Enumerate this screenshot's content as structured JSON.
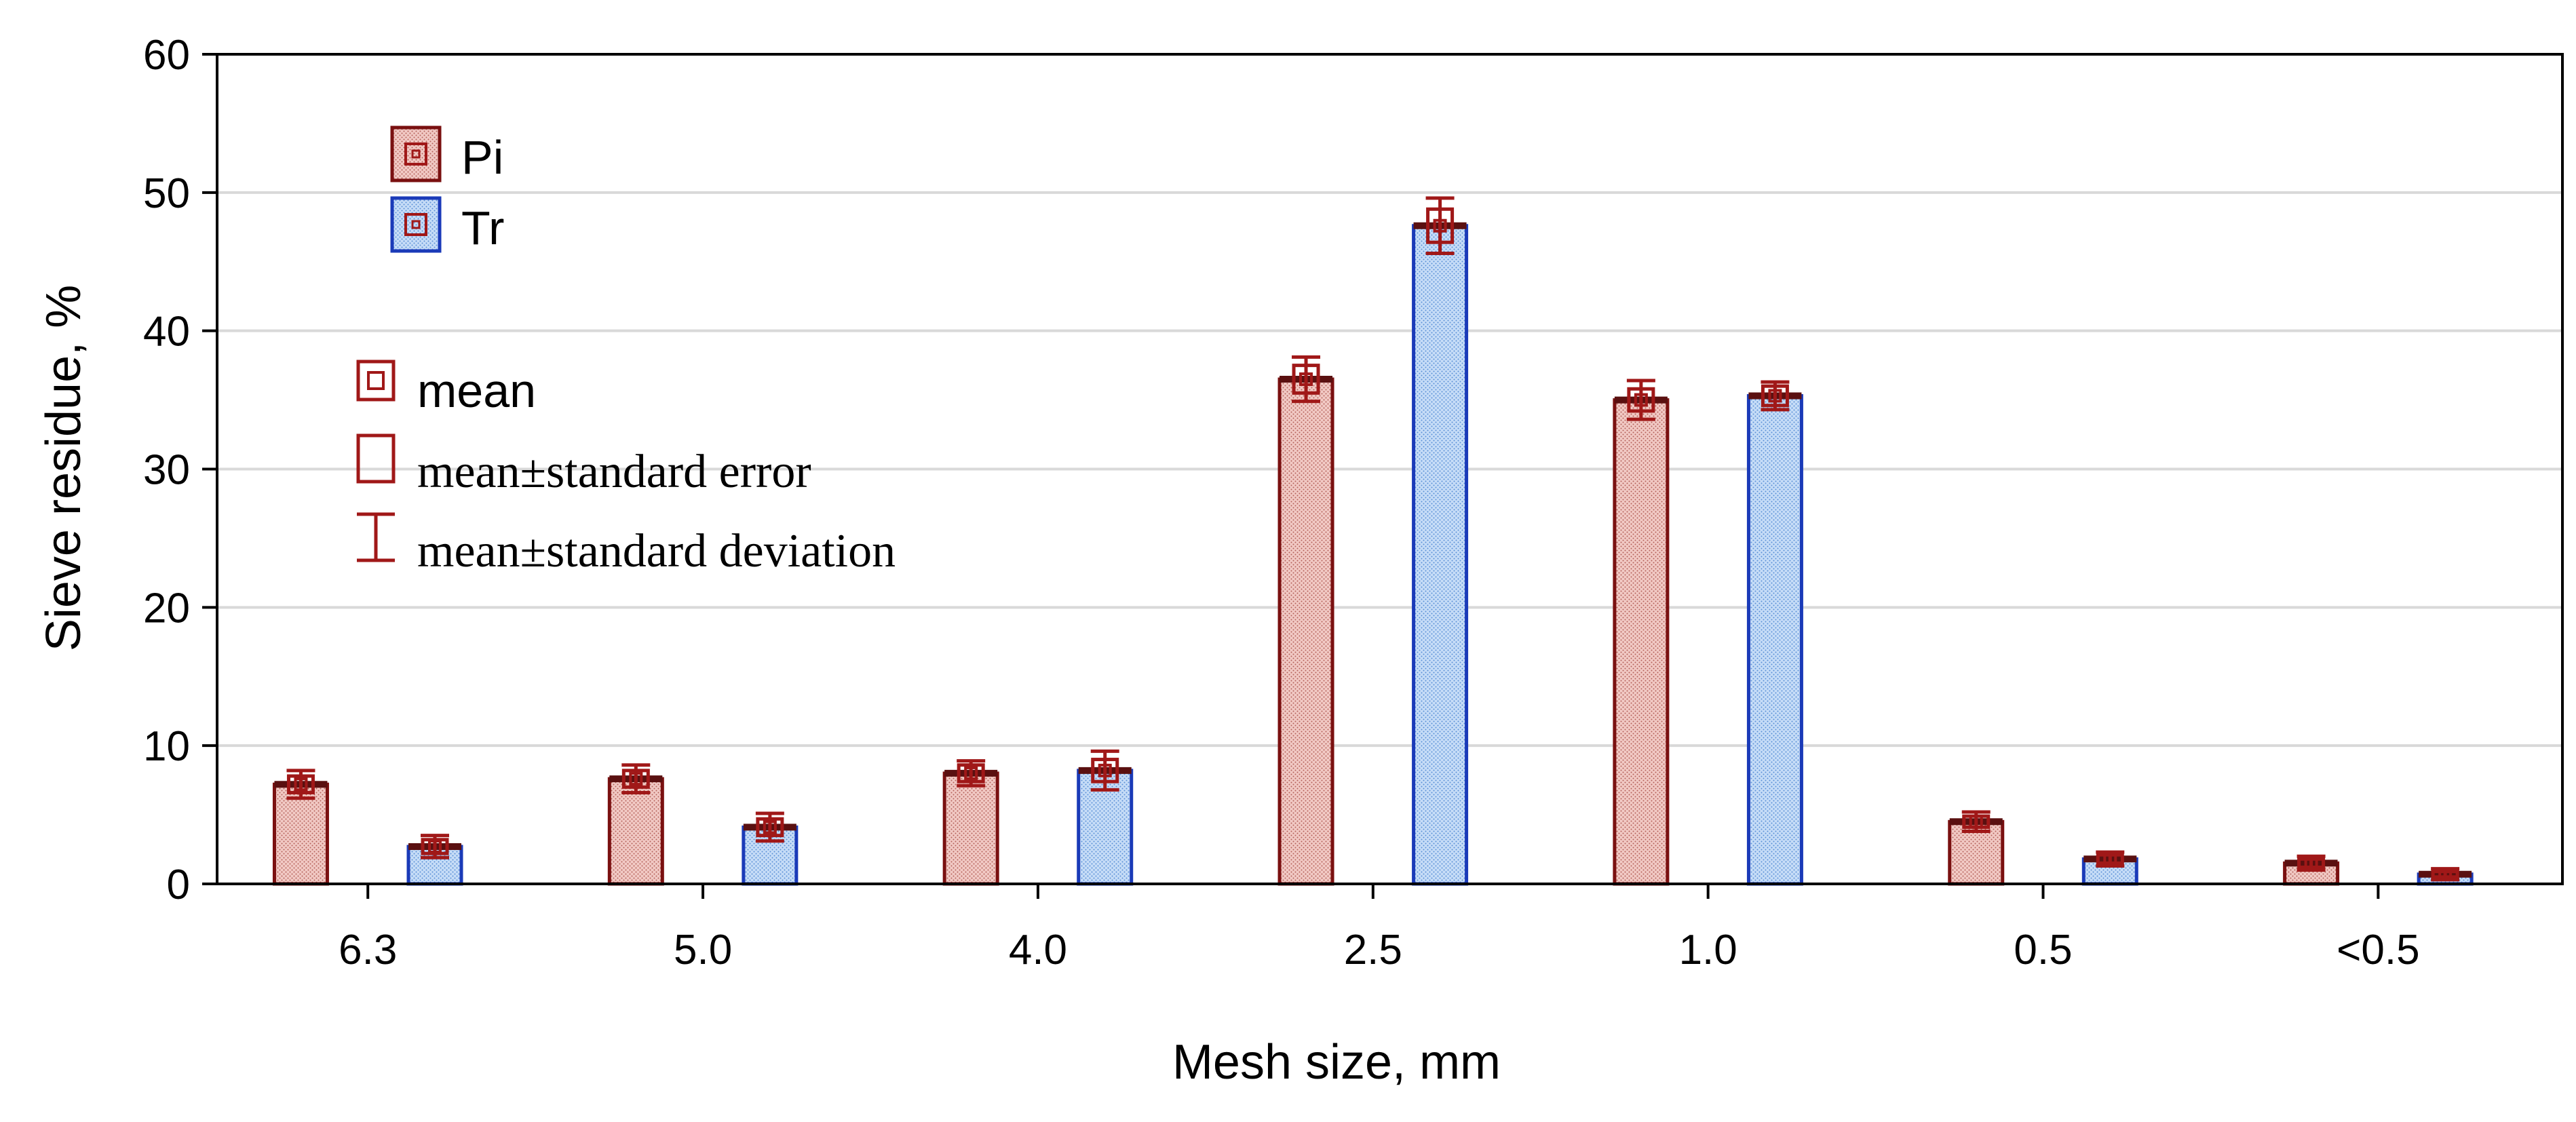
{
  "chart_data": {
    "type": "bar",
    "title": "",
    "xlabel": "Mesh size, mm",
    "ylabel": "Sieve residue, %",
    "ylim": [
      0,
      60
    ],
    "yticks": [
      0,
      10,
      20,
      30,
      40,
      50,
      60
    ],
    "grid": true,
    "categories": [
      "6.3",
      "5.0",
      "4.0",
      "2.5",
      "1.0",
      "0.5",
      "<0.5"
    ],
    "series": [
      {
        "name": "Pi",
        "color": "#e8b6b0",
        "border": "#7a1010",
        "values": [
          7.2,
          7.6,
          8.0,
          36.5,
          35.0,
          4.5,
          1.5
        ],
        "std_error": [
          0.6,
          0.6,
          0.6,
          1.0,
          0.8,
          0.4,
          0.3
        ],
        "std_dev": [
          1.0,
          1.0,
          0.9,
          1.6,
          1.4,
          0.7,
          0.5
        ]
      },
      {
        "name": "Tr",
        "color": "#aecbf0",
        "border": "#1a3ab8",
        "values": [
          2.7,
          4.1,
          8.2,
          47.6,
          35.3,
          1.8,
          0.7
        ],
        "std_error": [
          0.5,
          0.6,
          0.8,
          1.2,
          0.7,
          0.3,
          0.2
        ],
        "std_dev": [
          0.8,
          1.0,
          1.4,
          2.0,
          1.0,
          0.5,
          0.4
        ]
      }
    ],
    "legend": {
      "position": "top-left",
      "series_labels": [
        "Pi",
        "Tr"
      ],
      "stat_labels": {
        "mean": "mean",
        "se": "mean±standard error",
        "sd": "mean±standard deviation"
      }
    }
  }
}
